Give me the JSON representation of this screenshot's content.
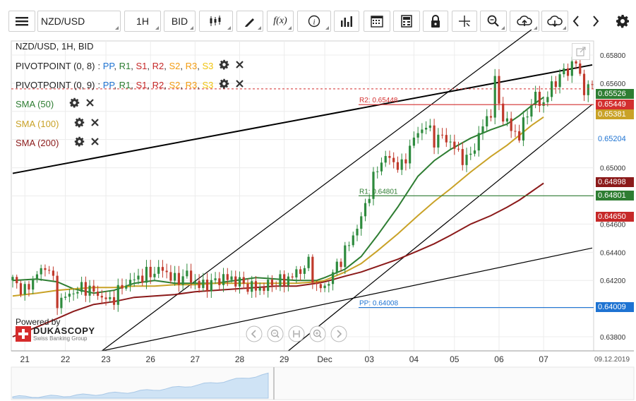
{
  "toolbar": {
    "menu_icon": "hamburger-menu-icon",
    "symbol": "NZD/USD",
    "timeframe": "1H",
    "price_side": "BID",
    "tools": [
      "chart-type-icon",
      "draw-icon",
      "function-icon",
      "info-icon",
      "volume-bars-icon",
      "calendar-icon",
      "calculator-icon",
      "lock-icon",
      "crosshair-icon",
      "zoom-icon",
      "upload-icon",
      "download-icon",
      "chevron-left-icon",
      "chevron-right-icon",
      "gear-icon"
    ]
  },
  "legend": {
    "header": "NZD/USD, 1H, BID",
    "pivot1": "PIVOTPOINT (0, 8)",
    "pivot2": "PIVOTPOINT (0, 9)",
    "pivot_parts": [
      {
        "text": ": ",
        "color": "#333333"
      },
      {
        "text": "PP",
        "color": "#1e73d2"
      },
      {
        "text": ", ",
        "color": "#333333"
      },
      {
        "text": "R1",
        "color": "#2e7d32"
      },
      {
        "text": ", ",
        "color": "#333333"
      },
      {
        "text": "S1",
        "color": "#c62828"
      },
      {
        "text": ", ",
        "color": "#333333"
      },
      {
        "text": "R2",
        "color": "#c62828"
      },
      {
        "text": ", ",
        "color": "#333333"
      },
      {
        "text": "S2",
        "color": "#f39c12"
      },
      {
        "text": ", ",
        "color": "#333333"
      },
      {
        "text": "R3",
        "color": "#f39c12"
      },
      {
        "text": ", ",
        "color": "#333333"
      },
      {
        "text": "S3",
        "color": "#f1c40f"
      }
    ],
    "sma50": "SMA (50)",
    "sma100": "SMA (100)",
    "sma200": "SMA (200)",
    "sma50_color": "#2e7d32",
    "sma100_color": "#c9a227",
    "sma200_color": "#8b1a1a"
  },
  "chart_data": {
    "type": "candlestick",
    "symbol": "NZD/USD",
    "timeframe": "1H",
    "ylim": [
      0.637,
      0.659
    ],
    "y_ticks": [
      "0.65800",
      "0.65600",
      "0.65400",
      "0.65200",
      "0.65000",
      "0.64800",
      "0.64600",
      "0.64400",
      "0.64200",
      "0.64000",
      "0.63800"
    ],
    "x_ticks": [
      "21",
      "22",
      "23",
      "26",
      "27",
      "28",
      "29",
      "Dec",
      "03",
      "04",
      "05",
      "06",
      "07"
    ],
    "date_label": "09.12.2019",
    "pivot_levels": [
      {
        "label": "R2: 0.65448",
        "value": 0.65448,
        "color": "#d32f2f"
      },
      {
        "label": "R1: 0.64801",
        "value": 0.64801,
        "color": "#2e7d32"
      },
      {
        "label": "PP: 0.64008",
        "value": 0.64008,
        "color": "#1e73d2"
      }
    ],
    "price_badges": [
      {
        "value": "0.65526",
        "color": "#2e7d32"
      },
      {
        "value": "0.65449",
        "color": "#d32f2f"
      },
      {
        "value": "0.65381",
        "color": "#c9a227"
      },
      {
        "value": "0.65204",
        "color": "#1e73d2",
        "style": "text"
      },
      {
        "value": "0.64898",
        "color": "#8b1a1a"
      },
      {
        "value": "0.64801",
        "color": "#2e7d32"
      },
      {
        "value": "0.64650",
        "color": "#c62828"
      },
      {
        "value": "0.64009",
        "color": "#1e73d2"
      }
    ],
    "current_price": 0.6556,
    "sma_series": [
      {
        "name": "SMA (50)",
        "color": "#2e7d32",
        "points": [
          [
            0,
            0.642
          ],
          [
            6,
            0.6421
          ],
          [
            11,
            0.6419
          ],
          [
            15,
            0.6414
          ],
          [
            20,
            0.6411
          ],
          [
            25,
            0.6413
          ],
          [
            30,
            0.6418
          ],
          [
            35,
            0.642
          ],
          [
            40,
            0.6418
          ],
          [
            45,
            0.6418
          ],
          [
            50,
            0.6418
          ],
          [
            55,
            0.642
          ],
          [
            60,
            0.6422
          ],
          [
            65,
            0.6421
          ],
          [
            70,
            0.642
          ],
          [
            75,
            0.642
          ],
          [
            77,
            0.6422
          ],
          [
            82,
            0.6428
          ],
          [
            86,
            0.6437
          ],
          [
            90,
            0.6452
          ],
          [
            95,
            0.6472
          ],
          [
            100,
            0.6494
          ],
          [
            104,
            0.6505
          ],
          [
            108,
            0.6513
          ],
          [
            113,
            0.6521
          ],
          [
            118,
            0.6527
          ],
          [
            122,
            0.6531
          ],
          [
            125,
            0.6537
          ],
          [
            128,
            0.6544
          ],
          [
            131,
            0.655
          ]
        ]
      },
      {
        "name": "SMA (100)",
        "color": "#c9a227",
        "points": [
          [
            0,
            0.6409
          ],
          [
            6,
            0.6411
          ],
          [
            11,
            0.6413
          ],
          [
            15,
            0.6414
          ],
          [
            20,
            0.6415
          ],
          [
            25,
            0.6415
          ],
          [
            30,
            0.6416
          ],
          [
            35,
            0.6416
          ],
          [
            40,
            0.6417
          ],
          [
            45,
            0.6417
          ],
          [
            50,
            0.6418
          ],
          [
            55,
            0.6418
          ],
          [
            60,
            0.6418
          ],
          [
            65,
            0.6418
          ],
          [
            70,
            0.6418
          ],
          [
            75,
            0.6419
          ],
          [
            77,
            0.642
          ],
          [
            82,
            0.6426
          ],
          [
            86,
            0.6432
          ],
          [
            90,
            0.6441
          ],
          [
            95,
            0.6453
          ],
          [
            100,
            0.6466
          ],
          [
            104,
            0.6476
          ],
          [
            108,
            0.6485
          ],
          [
            113,
            0.6497
          ],
          [
            118,
            0.6508
          ],
          [
            122,
            0.6516
          ],
          [
            125,
            0.6523
          ],
          [
            128,
            0.653
          ],
          [
            131,
            0.6536
          ]
        ]
      },
      {
        "name": "SMA (200)",
        "color": "#8b1a1a",
        "points": [
          [
            0,
            0.638
          ],
          [
            6,
            0.6387
          ],
          [
            11,
            0.6393
          ],
          [
            15,
            0.6398
          ],
          [
            20,
            0.6403
          ],
          [
            25,
            0.6405
          ],
          [
            30,
            0.6408
          ],
          [
            35,
            0.6409
          ],
          [
            40,
            0.641
          ],
          [
            45,
            0.6412
          ],
          [
            50,
            0.6413
          ],
          [
            55,
            0.6414
          ],
          [
            60,
            0.6415
          ],
          [
            65,
            0.6416
          ],
          [
            70,
            0.6416
          ],
          [
            75,
            0.6418
          ],
          [
            77,
            0.6419
          ],
          [
            82,
            0.6423
          ],
          [
            86,
            0.6426
          ],
          [
            90,
            0.643
          ],
          [
            95,
            0.6435
          ],
          [
            100,
            0.6441
          ],
          [
            104,
            0.6446
          ],
          [
            108,
            0.6452
          ],
          [
            113,
            0.646
          ],
          [
            118,
            0.6466
          ],
          [
            122,
            0.6472
          ],
          [
            125,
            0.6477
          ],
          [
            128,
            0.6483
          ],
          [
            131,
            0.6489
          ]
        ]
      }
    ],
    "price_path": [
      [
        0,
        0.642
      ],
      [
        3,
        0.6412
      ],
      [
        6,
        0.6425
      ],
      [
        9,
        0.643
      ],
      [
        11,
        0.6405
      ],
      [
        13,
        0.6408
      ],
      [
        15,
        0.6412
      ],
      [
        18,
        0.6415
      ],
      [
        21,
        0.641
      ],
      [
        24,
        0.6405
      ],
      [
        26,
        0.6412
      ],
      [
        28,
        0.6418
      ],
      [
        31,
        0.6422
      ],
      [
        34,
        0.6425
      ],
      [
        37,
        0.6428
      ],
      [
        40,
        0.642
      ],
      [
        43,
        0.6424
      ],
      [
        46,
        0.6416
      ],
      [
        49,
        0.6418
      ],
      [
        52,
        0.6422
      ],
      [
        55,
        0.642
      ],
      [
        58,
        0.6416
      ],
      [
        61,
        0.6414
      ],
      [
        64,
        0.6418
      ],
      [
        67,
        0.642
      ],
      [
        70,
        0.6425
      ],
      [
        73,
        0.6432
      ],
      [
        75,
        0.6415
      ],
      [
        77,
        0.6415
      ],
      [
        80,
        0.643
      ],
      [
        83,
        0.6446
      ],
      [
        86,
        0.6464
      ],
      [
        88,
        0.6483
      ],
      [
        90,
        0.65
      ],
      [
        92,
        0.6508
      ],
      [
        94,
        0.6504
      ],
      [
        96,
        0.65
      ],
      [
        98,
        0.6515
      ],
      [
        100,
        0.6525
      ],
      [
        102,
        0.653
      ],
      [
        104,
        0.652
      ],
      [
        106,
        0.6522
      ],
      [
        108,
        0.6518
      ],
      [
        110,
        0.651
      ],
      [
        112,
        0.6505
      ],
      [
        114,
        0.6515
      ],
      [
        116,
        0.653
      ],
      [
        118,
        0.654
      ],
      [
        119,
        0.656
      ],
      [
        121,
        0.6535
      ],
      [
        123,
        0.6528
      ],
      [
        125,
        0.6522
      ],
      [
        127,
        0.654
      ],
      [
        129,
        0.655
      ],
      [
        131,
        0.6545
      ],
      [
        133,
        0.6558
      ],
      [
        135,
        0.6565
      ],
      [
        137,
        0.657
      ],
      [
        139,
        0.6575
      ],
      [
        141,
        0.6555
      ],
      [
        143,
        0.6558
      ]
    ],
    "trendlines": [
      {
        "from": [
          0,
          0.6496
        ],
        "to": [
          143,
          0.6573
        ],
        "color": "#000000"
      },
      {
        "from": [
          22,
          0.637
        ],
        "to": [
          143,
          0.6443
        ],
        "color": "#000000"
      },
      {
        "from": [
          22,
          0.637
        ],
        "to": [
          128,
          0.6598
        ],
        "color": "#000000"
      },
      {
        "from": [
          68,
          0.637
        ],
        "to": [
          143,
          0.6545
        ],
        "color": "#000000"
      }
    ],
    "branding": {
      "powered_by": "Powered by",
      "name": "DUKASCOPY",
      "sub": "Swiss Banking Group"
    }
  }
}
